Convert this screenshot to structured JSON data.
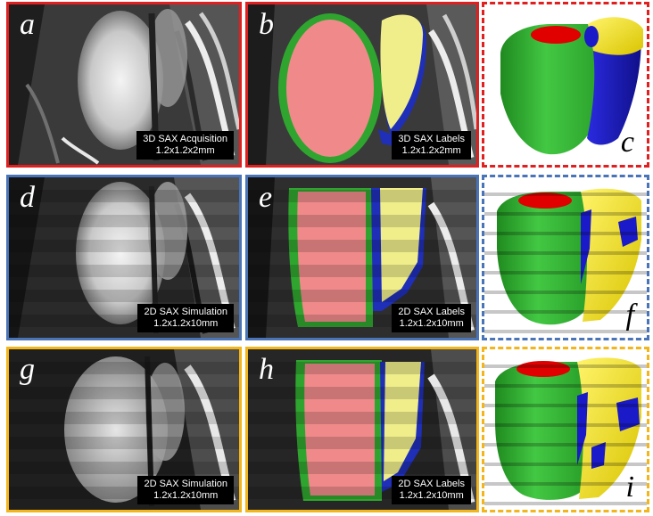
{
  "colors": {
    "row1_border": "#e02020",
    "row2_border": "#4a74b8",
    "row3_border": "#f2b51c",
    "lv_blood_pool": "#f08a8a",
    "lv_myocardium": "#2fa52f",
    "rv_blood_pool": "#f0ee8a",
    "rv_myocardium": "#1f2fb8",
    "mesh_lv": "#3cc23c",
    "mesh_rv": "#f0e020",
    "mesh_cap": "#e00000",
    "mesh_wall": "#1a1ac8"
  },
  "rows": [
    {
      "acquisition": {
        "letter": "a",
        "label": "3D SAX Acquisition",
        "resolution": "1.2x1.2x2mm"
      },
      "labels": {
        "letter": "b",
        "label": "3D SAX Labels",
        "resolution": "1.2x1.2x2mm"
      },
      "mesh": {
        "letter": "c"
      }
    },
    {
      "acquisition": {
        "letter": "d",
        "label": "2D SAX Simulation",
        "resolution": "1.2x1.2x10mm"
      },
      "labels": {
        "letter": "e",
        "label": "2D SAX Labels",
        "resolution": "1.2x1.2x10mm"
      },
      "mesh": {
        "letter": "f"
      }
    },
    {
      "acquisition": {
        "letter": "g",
        "label": "2D SAX Simulation",
        "resolution": "1.2x1.2x10mm"
      },
      "labels": {
        "letter": "h",
        "label": "2D SAX Labels",
        "resolution": "1.2x1.2x10mm"
      },
      "mesh": {
        "letter": "i"
      }
    }
  ]
}
